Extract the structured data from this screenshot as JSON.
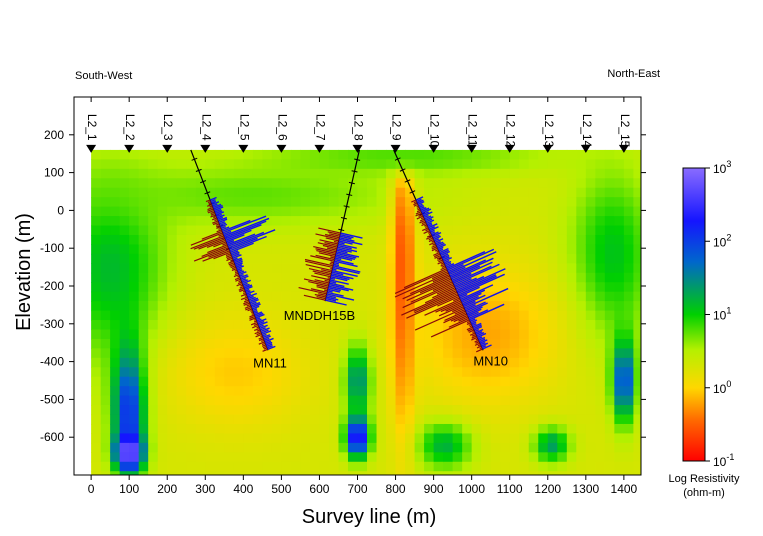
{
  "chart_data": {
    "type": "heatmap",
    "title": "",
    "direction_left": "South-West",
    "direction_right": "North-East",
    "xlabel": "Survey line (m)",
    "ylabel": "Elevation (m)",
    "xlim": [
      -45,
      1445
    ],
    "ylim": [
      -700,
      300
    ],
    "x_ticks": [
      0,
      100,
      200,
      300,
      400,
      500,
      600,
      700,
      800,
      900,
      1000,
      1100,
      1200,
      1300,
      1400
    ],
    "y_ticks": [
      200,
      100,
      0,
      -100,
      -200,
      -300,
      -400,
      -500,
      -600
    ],
    "colorbar": {
      "label": "Log Resistivity (ohm-m)",
      "label_line1": "Log Resistivity",
      "label_line2": "(ohm-m)",
      "range_log10": [
        -1,
        3
      ],
      "ticks": [
        {
          "value": 3,
          "base": "10",
          "exp": "3"
        },
        {
          "value": 2,
          "base": "10",
          "exp": "2"
        },
        {
          "value": 1,
          "base": "10",
          "exp": "1"
        },
        {
          "value": 0,
          "base": "10",
          "exp": "0"
        },
        {
          "value": -1,
          "base": "10",
          "exp": "-1"
        }
      ],
      "colors": [
        "#ff0000",
        "#ff6a00",
        "#ffd700",
        "#b4f000",
        "#00d000",
        "#0066cc",
        "#1515ff",
        "#8a6cff"
      ]
    },
    "stations": [
      {
        "label": "L2_1",
        "x": 0
      },
      {
        "label": "L2_2",
        "x": 100
      },
      {
        "label": "L2_3",
        "x": 200
      },
      {
        "label": "L2_4",
        "x": 300
      },
      {
        "label": "L2_5",
        "x": 400
      },
      {
        "label": "L2_6",
        "x": 500
      },
      {
        "label": "L2_7",
        "x": 600
      },
      {
        "label": "L2_8",
        "x": 700
      },
      {
        "label": "L2_9",
        "x": 800
      },
      {
        "label": "L2_10",
        "x": 900
      },
      {
        "label": "L2_11",
        "x": 1000
      },
      {
        "label": "L2_12",
        "x": 1100
      },
      {
        "label": "L2_13",
        "x": 1200
      },
      {
        "label": "L2_14",
        "x": 1300
      },
      {
        "label": "L2_15",
        "x": 1400
      }
    ],
    "station_elevation": 160,
    "surface_elevation": 160,
    "drillholes": [
      {
        "name": "MN11",
        "label_at": [
          470,
          -415
        ],
        "collar": [
          262,
          160
        ],
        "end": [
          465,
          -370
        ]
      },
      {
        "name": "MNDDH15B",
        "label_at": [
          600,
          -290
        ],
        "collar": [
          705,
          160
        ],
        "end": [
          615,
          -240
        ]
      },
      {
        "name": "MN10",
        "label_at": [
          1050,
          -410
        ],
        "collar": [
          795,
          160
        ],
        "end": [
          1030,
          -370
        ]
      }
    ],
    "resistivity_model": {
      "units": "log10(ohm-m)",
      "background": 0.3,
      "anomalies": [
        {
          "cx": 50,
          "cy": -150,
          "rx": 190,
          "ry": 320,
          "value": 1.15
        },
        {
          "cx": 100,
          "cy": -520,
          "rx": 55,
          "ry": 210,
          "value": 2.3
        },
        {
          "cx": 100,
          "cy": -640,
          "rx": 45,
          "ry": 60,
          "value": 3.0
        },
        {
          "cx": 1370,
          "cy": -120,
          "rx": 140,
          "ry": 280,
          "value": 1.1
        },
        {
          "cx": 1400,
          "cy": -450,
          "rx": 40,
          "ry": 140,
          "value": 2.0
        },
        {
          "cx": 700,
          "cy": -450,
          "rx": 45,
          "ry": 120,
          "value": 1.6
        },
        {
          "cx": 700,
          "cy": -600,
          "rx": 40,
          "ry": 70,
          "value": 2.6
        },
        {
          "cx": 930,
          "cy": -620,
          "rx": 90,
          "ry": 80,
          "value": 1.3
        },
        {
          "cx": 1210,
          "cy": -620,
          "rx": 60,
          "ry": 60,
          "value": 1.4
        },
        {
          "cx": 420,
          "cy": 40,
          "rx": 560,
          "ry": 110,
          "value": 0.75
        },
        {
          "cx": 820,
          "cy": -180,
          "rx": 40,
          "ry": 500,
          "value": -0.6
        },
        {
          "cx": 380,
          "cy": -430,
          "rx": 240,
          "ry": 190,
          "value": -0.05
        },
        {
          "cx": 1040,
          "cy": -330,
          "rx": 240,
          "ry": 230,
          "value": -0.2
        },
        {
          "cx": 820,
          "cy": 140,
          "rx": 500,
          "ry": 60,
          "value": 0.8
        }
      ]
    }
  }
}
